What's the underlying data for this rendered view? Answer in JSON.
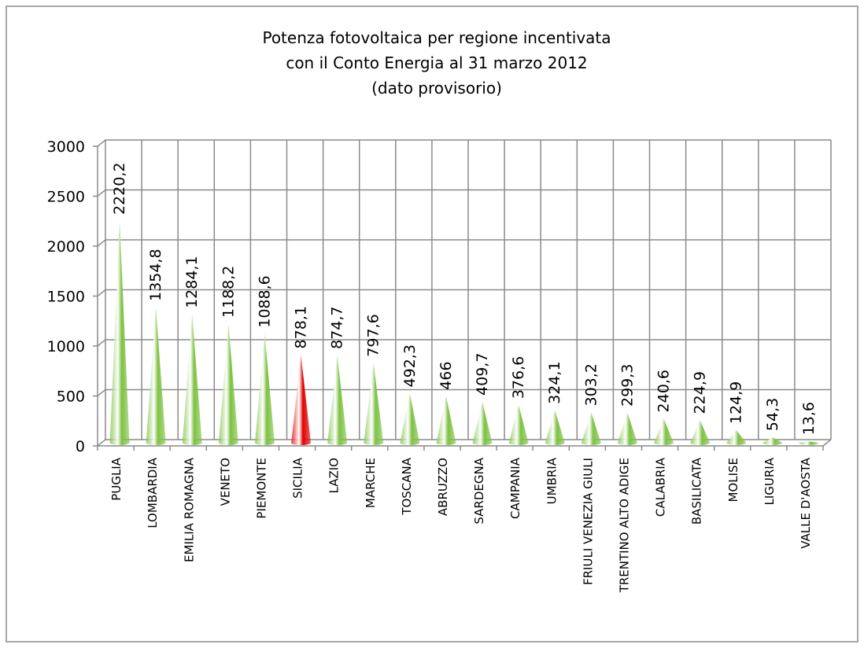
{
  "chart_data": {
    "type": "bar",
    "title": [
      "Potenza fotovoltaica per regione  incentivata",
      "con il Conto Energia al 31 marzo 2012",
      "(dato provisorio)"
    ],
    "categories": [
      "PUGLIA",
      "LOMBARDIA",
      "EMILIA ROMAGNA",
      "VENETO",
      "PIEMONTE",
      "SICILIA",
      "LAZIO",
      "MARCHE",
      "TOSCANA",
      "ABRUZZO",
      "SARDEGNA",
      "CAMPANIA",
      "UMBRIA",
      "FRIULI VENEZIA GIULI",
      "TRENTINO ALTO ADIGE",
      "CALABRIA",
      "BASILICATA",
      "MOLISE",
      "LIGURIA",
      "VALLE D'AOSTA"
    ],
    "values": [
      2220.2,
      1354.8,
      1284.1,
      1188.2,
      1088.6,
      878.1,
      874.7,
      797.6,
      492.3,
      466,
      409.7,
      376.6,
      324.1,
      303.2,
      299.3,
      240.6,
      224.9,
      124.9,
      54.3,
      13.6
    ],
    "value_labels": [
      "2220,2",
      "1354,8",
      "1284,1",
      "1188,2",
      "1088,6",
      "878,1",
      "874,7",
      "797,6",
      "492,3",
      "466",
      "409,7",
      "376,6",
      "324,1",
      "303,2",
      "299,3",
      "240,6",
      "224,9",
      "124,9",
      "54,3",
      "13,6"
    ],
    "colors": [
      "#7dc242",
      "#7dc242",
      "#7dc242",
      "#7dc242",
      "#7dc242",
      "#e00000",
      "#7dc242",
      "#7dc242",
      "#7dc242",
      "#7dc242",
      "#7dc242",
      "#7dc242",
      "#7dc242",
      "#7dc242",
      "#7dc242",
      "#7dc242",
      "#7dc242",
      "#7dc242",
      "#7dc242",
      "#7dc242"
    ],
    "ylim": [
      0,
      3000
    ],
    "yticks": [
      0,
      500,
      1000,
      1500,
      2000,
      2500,
      3000
    ],
    "grid": true
  }
}
